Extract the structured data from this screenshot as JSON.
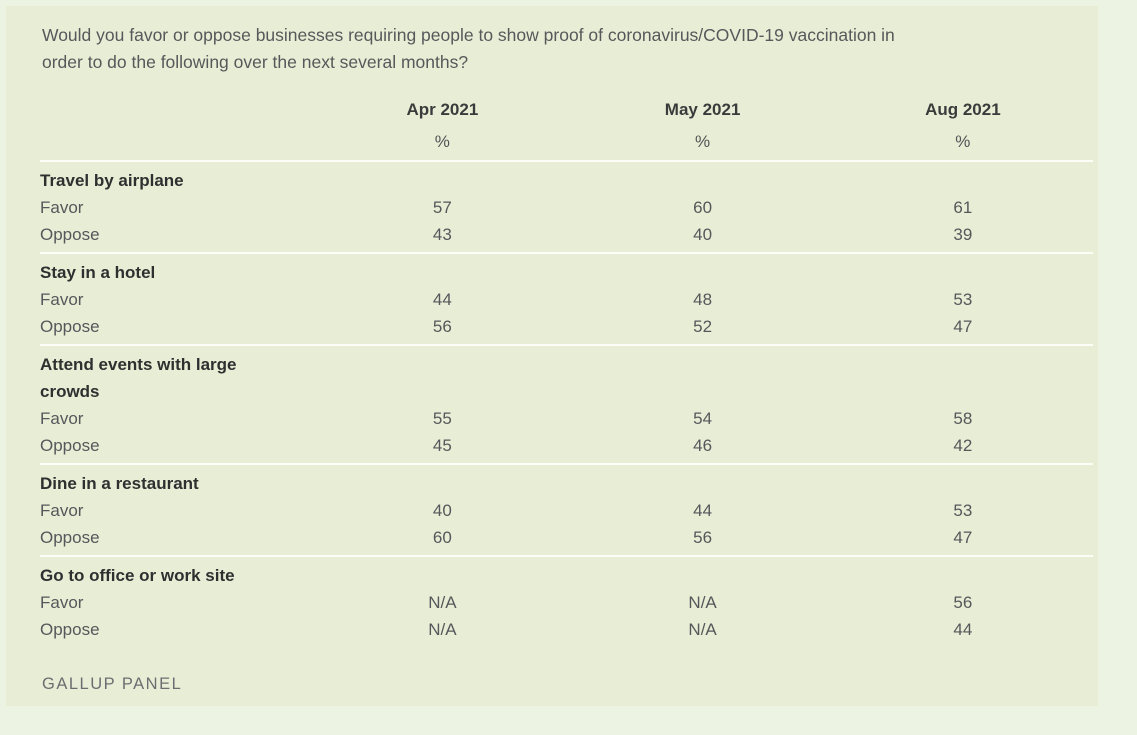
{
  "title": "Would you favor or oppose businesses requiring people to show proof of coronavirus/COVID-19 vaccination in order to do the following over the next several months?",
  "columns": [
    "Apr 2021",
    "May 2021",
    "Aug 2021"
  ],
  "percent_symbol": "%",
  "sections": [
    {
      "label": "Travel by airplane",
      "rows": [
        {
          "label": "Favor",
          "values": [
            "57",
            "60",
            "61"
          ]
        },
        {
          "label": "Oppose",
          "values": [
            "43",
            "40",
            "39"
          ]
        }
      ]
    },
    {
      "label": "Stay in a hotel",
      "rows": [
        {
          "label": "Favor",
          "values": [
            "44",
            "48",
            "53"
          ]
        },
        {
          "label": "Oppose",
          "values": [
            "56",
            "52",
            "47"
          ]
        }
      ]
    },
    {
      "label": "Attend events with large crowds",
      "rows": [
        {
          "label": "Favor",
          "values": [
            "55",
            "54",
            "58"
          ]
        },
        {
          "label": "Oppose",
          "values": [
            "45",
            "46",
            "42"
          ]
        }
      ]
    },
    {
      "label": "Dine in a restaurant",
      "rows": [
        {
          "label": "Favor",
          "values": [
            "40",
            "44",
            "53"
          ]
        },
        {
          "label": "Oppose",
          "values": [
            "60",
            "56",
            "47"
          ]
        }
      ]
    },
    {
      "label": "Go to office or work site",
      "rows": [
        {
          "label": "Favor",
          "values": [
            "N/A",
            "N/A",
            "56"
          ]
        },
        {
          "label": "Oppose",
          "values": [
            "N/A",
            "N/A",
            "44"
          ]
        }
      ]
    }
  ],
  "source": "GALLUP PANEL",
  "colors": {
    "page_background": "#edf3e3",
    "figure_background": "#e8eed6",
    "divider": "#fcfdf7",
    "heading_text": "#2f2f30",
    "body_text": "#55575a"
  },
  "chart_data": {
    "type": "table",
    "title": "Would you favor or oppose businesses requiring people to show proof of coronavirus/COVID-19 vaccination in order to do the following over the next several months?",
    "columns": [
      "Apr 2021",
      "May 2021",
      "Aug 2021"
    ],
    "units": "%",
    "rows": [
      {
        "category": "Travel by airplane",
        "favor": [
          57,
          60,
          61
        ],
        "oppose": [
          43,
          40,
          39
        ]
      },
      {
        "category": "Stay in a hotel",
        "favor": [
          44,
          48,
          53
        ],
        "oppose": [
          56,
          52,
          47
        ]
      },
      {
        "category": "Attend events with large crowds",
        "favor": [
          55,
          54,
          58
        ],
        "oppose": [
          45,
          46,
          42
        ]
      },
      {
        "category": "Dine in a restaurant",
        "favor": [
          40,
          44,
          53
        ],
        "oppose": [
          60,
          56,
          47
        ]
      },
      {
        "category": "Go to office or work site",
        "favor": [
          null,
          null,
          56
        ],
        "oppose": [
          null,
          null,
          44
        ]
      }
    ],
    "source": "GALLUP PANEL"
  }
}
